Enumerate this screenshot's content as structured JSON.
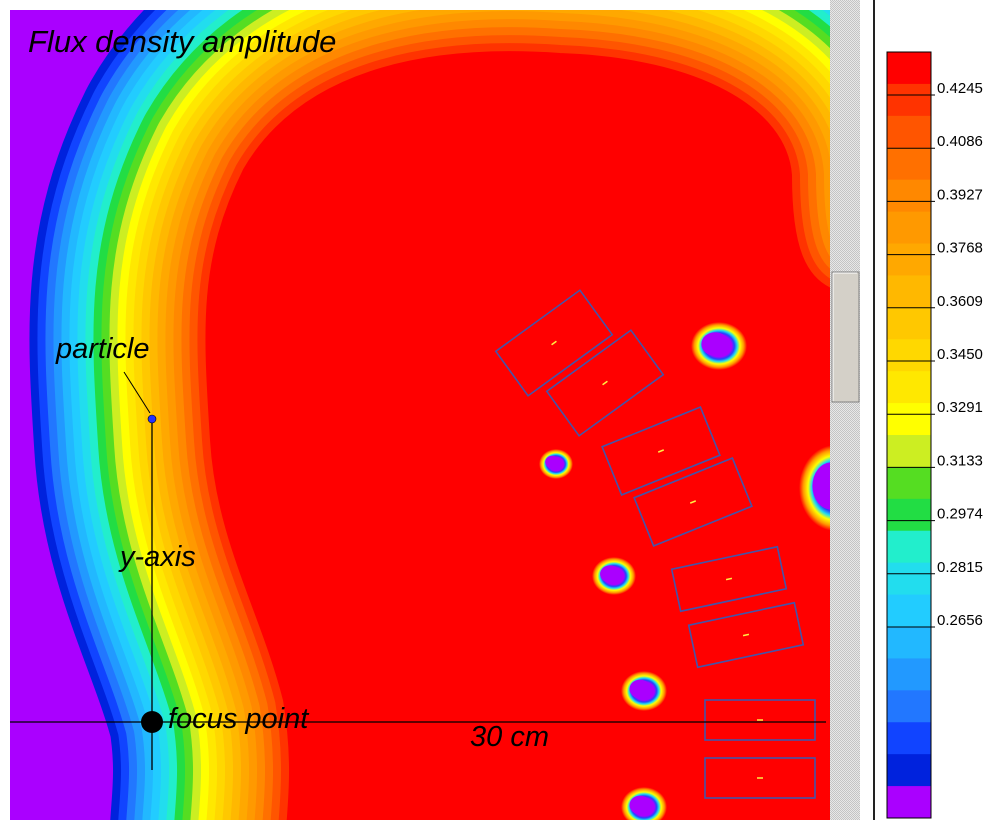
{
  "plot": {
    "title": "Flux density amplitude",
    "labels": {
      "particle": "particle",
      "y_axis": "y-axis",
      "focus_point": "focus point",
      "scale": "30 cm"
    }
  },
  "colorbar": {
    "ticks": [
      "0.4245",
      "0.4086",
      "0.3927",
      "0.3768",
      "0.3609",
      "0.3450",
      "0.3291",
      "0.3133",
      "0.2974",
      "0.2815",
      "0.2656"
    ],
    "colors": [
      "#ff0000",
      "#ff3300",
      "#ff5500",
      "#ff7000",
      "#ff8800",
      "#ff9900",
      "#ffa800",
      "#ffb800",
      "#ffc800",
      "#ffd800",
      "#ffe800",
      "#ffff00",
      "#ccee22",
      "#55dd22",
      "#22dd44",
      "#22eecc",
      "#22ddee",
      "#22ccff",
      "#22b8ff",
      "#2299ff",
      "#2277ff",
      "#1144ff",
      "#0022dd",
      "#aa00ff"
    ]
  },
  "scrollbar": {
    "thumb_position": 0.37
  }
}
